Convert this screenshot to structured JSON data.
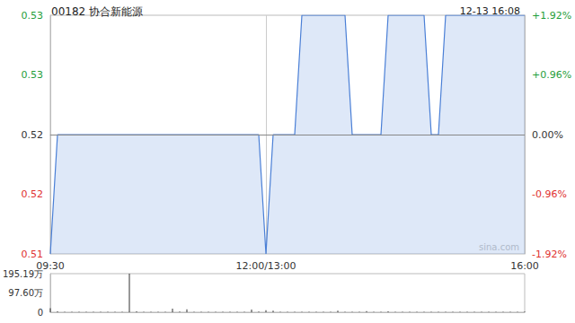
{
  "chart_data": [
    {
      "type": "line",
      "title": "00182 协合新能源",
      "subtitle": "12-13 16:08",
      "watermark": "sina.com",
      "color": "#4a7fd6",
      "grid": false,
      "categories": [
        "09:30",
        null,
        null,
        null,
        null,
        null,
        null,
        null,
        null,
        null,
        null,
        null,
        null,
        null,
        null,
        null,
        null,
        null,
        null,
        null,
        null,
        null,
        null,
        null,
        null,
        null,
        null,
        null,
        null,
        null,
        "12:00/13:00",
        null,
        null,
        null,
        null,
        null,
        null,
        null,
        null,
        null,
        null,
        null,
        null,
        null,
        null,
        null,
        null,
        null,
        null,
        null,
        null,
        null,
        null,
        null,
        null,
        null,
        null,
        null,
        null,
        null,
        null,
        null,
        null,
        null,
        null,
        null,
        "16:00"
      ],
      "values": [
        0.51,
        0.52,
        0.52,
        0.52,
        0.52,
        0.52,
        0.52,
        0.52,
        0.52,
        0.52,
        0.52,
        0.52,
        0.52,
        0.52,
        0.52,
        0.52,
        0.52,
        0.52,
        0.52,
        0.52,
        0.52,
        0.52,
        0.52,
        0.52,
        0.52,
        0.52,
        0.52,
        0.52,
        0.52,
        0.52,
        0.51,
        0.52,
        0.52,
        0.52,
        0.52,
        0.53,
        0.53,
        0.53,
        0.53,
        0.53,
        0.53,
        0.53,
        0.52,
        0.52,
        0.52,
        0.52,
        0.52,
        0.53,
        0.53,
        0.53,
        0.53,
        0.53,
        0.53,
        0.52,
        0.52,
        0.53,
        0.53,
        0.53,
        0.53,
        0.53,
        0.53,
        0.53,
        0.53,
        0.53,
        0.53,
        0.53,
        0.53
      ],
      "ylim": [
        0.51,
        0.53
      ],
      "yticks": [
        0.51,
        {
          "value": 0.515,
          "label": "0.52"
        },
        0.52,
        {
          "value": 0.525,
          "label": "0.53"
        },
        0.53
      ],
      "y2lim": [
        -1.92,
        1.92
      ],
      "y2ticks": [
        {
          "value": -1.92,
          "label": "-1.92%"
        },
        {
          "value": -0.96,
          "label": "-0.96%"
        },
        {
          "value": 0,
          "label": "0.00%"
        },
        {
          "value": 0.96,
          "label": "+0.96%"
        },
        {
          "value": 1.92,
          "label": "+1.92%"
        }
      ]
    },
    {
      "type": "bar",
      "color": "#333333",
      "grid": false,
      "categories": [
        "09:30",
        null,
        null,
        null,
        null,
        null,
        null,
        null,
        null,
        null,
        null,
        null,
        null,
        null,
        null,
        null,
        null,
        null,
        null,
        null,
        null,
        null,
        null,
        null,
        null,
        null,
        null,
        null,
        null,
        null,
        "12:00/13:00",
        null,
        null,
        null,
        null,
        null,
        null,
        null,
        null,
        null,
        null,
        null,
        null,
        null,
        null,
        null,
        null,
        null,
        null,
        null,
        null,
        null,
        null,
        null,
        null,
        null,
        null,
        null,
        null,
        null,
        null,
        null,
        null,
        null,
        null,
        null,
        "16:00"
      ],
      "tick_labels": "y",
      "values": [
        20,
        5,
        2,
        2,
        2,
        2,
        2,
        2,
        2,
        2,
        2,
        195,
        4,
        2,
        2,
        2,
        2,
        18,
        3,
        15,
        2,
        2,
        2,
        2,
        2,
        2,
        2,
        2,
        14,
        3,
        10,
        8,
        2,
        2,
        2,
        2,
        2,
        2,
        2,
        2,
        8,
        2,
        2,
        2,
        6,
        2,
        2,
        5,
        2,
        2,
        2,
        2,
        2,
        2,
        2,
        2,
        2,
        2,
        2,
        2,
        2,
        2,
        2,
        2,
        2,
        2,
        3
      ],
      "ylim": [
        0,
        195.19
      ],
      "yticks": [
        0,
        {
          "value": 97.6,
          "label": "97.60万"
        },
        {
          "value": 195.19,
          "label": "195.19万"
        }
      ]
    }
  ]
}
